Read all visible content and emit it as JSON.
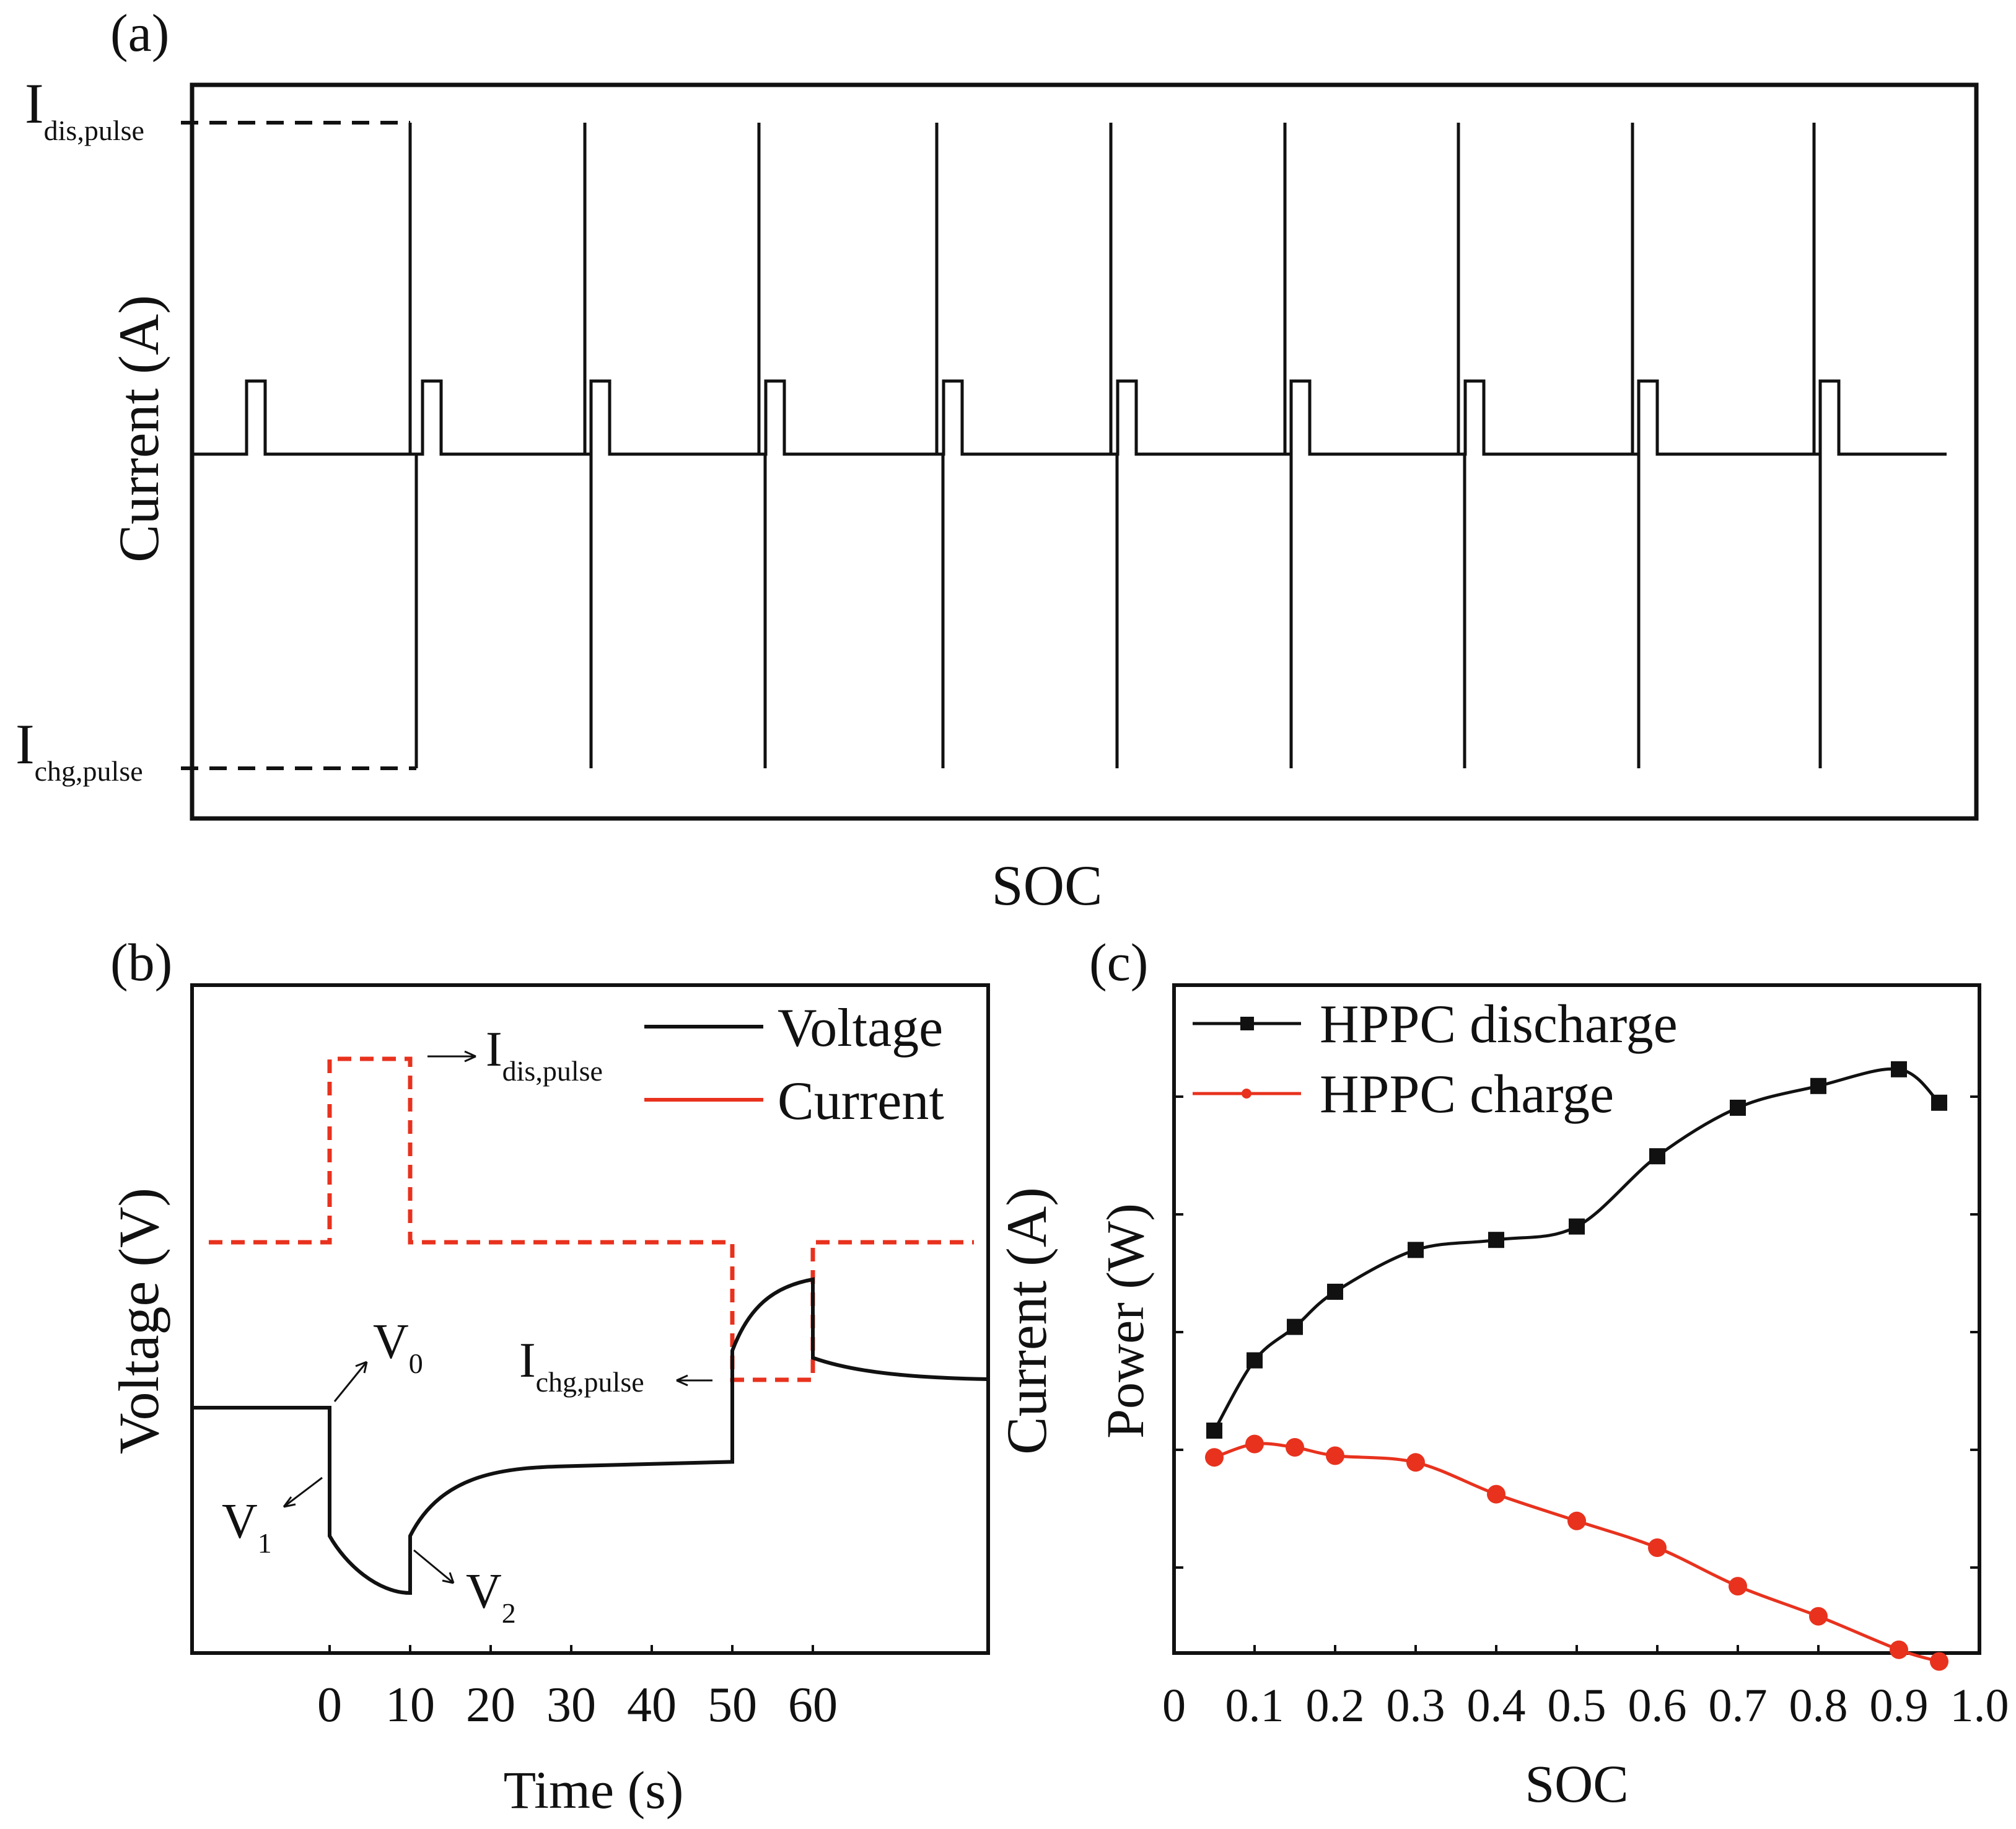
{
  "colors": {
    "black": "#111111",
    "red": "#e8321e",
    "background": "#ffffff"
  },
  "chart_data": [
    {
      "id": "a",
      "type": "line",
      "panel_label": "(a)",
      "title": "",
      "xlabel": "SOC",
      "ylabel": "Current (A)",
      "grid": false,
      "y_levels": {
        "Idis_pulse": 1,
        "rest": 0,
        "small_pulse": 0.22,
        "Ichg_pulse": -0.95
      },
      "annotations": [
        {
          "main": "I",
          "sub": "dis,pulse"
        },
        {
          "main": "I",
          "sub": "chg,pulse"
        }
      ],
      "pulse_cycles": [
        {
          "index": 1,
          "has_main_pulse": true
        },
        {
          "index": 2,
          "has_main_pulse": true
        },
        {
          "index": 3,
          "has_main_pulse": true
        },
        {
          "index": 4,
          "has_main_pulse": true
        },
        {
          "index": 5,
          "has_main_pulse": true
        },
        {
          "index": 6,
          "has_main_pulse": true
        },
        {
          "index": 7,
          "has_main_pulse": true
        },
        {
          "index": 8,
          "has_main_pulse": true
        },
        {
          "index": 9,
          "has_main_pulse": true
        }
      ]
    },
    {
      "id": "b",
      "type": "line",
      "panel_label": "(b)",
      "xlabel": "Time (s)",
      "ylabel": "Voltage (V)",
      "xticks": [
        "0",
        "10",
        "20",
        "30",
        "40",
        "50",
        "60"
      ],
      "legend_position": "top-right",
      "series": [
        {
          "name": "Voltage",
          "color": "#111111",
          "style": "solid",
          "x": [
            -15,
            0,
            0,
            10,
            10,
            20,
            30,
            40,
            50,
            50,
            60,
            60,
            70,
            80
          ],
          "y": [
            -2.0,
            -2.0,
            -2.9,
            -3.3,
            -2.9,
            -2.45,
            -2.4,
            -2.4,
            -2.38,
            -1.6,
            -1.1,
            -1.65,
            -1.78,
            -1.8
          ]
        },
        {
          "name": "Current",
          "color": "#e8321e",
          "style": "dashed",
          "x": [
            -15,
            0,
            0,
            10,
            10,
            50,
            50,
            60,
            60,
            80
          ],
          "y": [
            0,
            0,
            1.6,
            1.6,
            0,
            0,
            -1.2,
            -1.2,
            0,
            0
          ]
        }
      ],
      "annotations": [
        {
          "main": "I",
          "sub": "dis,pulse"
        },
        {
          "main": "I",
          "sub": "chg,pulse"
        },
        {
          "main": "V",
          "sub": "0"
        },
        {
          "main": "V",
          "sub": "1"
        },
        {
          "main": "V",
          "sub": "2"
        }
      ]
    },
    {
      "id": "c",
      "type": "line",
      "panel_label": "(c)",
      "xlabel": "SOC",
      "ylabel_outer": "Current (A)",
      "ylabel": "Power (W)",
      "xlim": [
        0,
        1.0
      ],
      "xticks": [
        "0",
        "0.1",
        "0.2",
        "0.3",
        "0.4",
        "0.5",
        "0.6",
        "0.7",
        "0.8",
        "0.9",
        "1.0"
      ],
      "ylim": [
        0,
        100
      ],
      "legend_position": "top-left",
      "series": [
        {
          "name": "HPPC discharge",
          "color": "#111111",
          "marker": "square",
          "x": [
            0.05,
            0.1,
            0.15,
            0.2,
            0.3,
            0.4,
            0.5,
            0.6,
            0.7,
            0.8,
            0.9,
            0.95
          ],
          "y": [
            15.0,
            19.2,
            21.2,
            23.3,
            25.8,
            26.4,
            27.2,
            31.4,
            34.3,
            35.6,
            36.6,
            34.6
          ]
        },
        {
          "name": "HPPC charge",
          "color": "#e8321e",
          "marker": "circle",
          "x": [
            0.05,
            0.1,
            0.15,
            0.2,
            0.3,
            0.4,
            0.5,
            0.6,
            0.7,
            0.8,
            0.9,
            0.95
          ],
          "y": [
            13.4,
            14.2,
            14.0,
            13.5,
            13.1,
            11.2,
            9.6,
            8.0,
            5.7,
            3.9,
            1.9,
            1.2
          ]
        }
      ]
    }
  ]
}
